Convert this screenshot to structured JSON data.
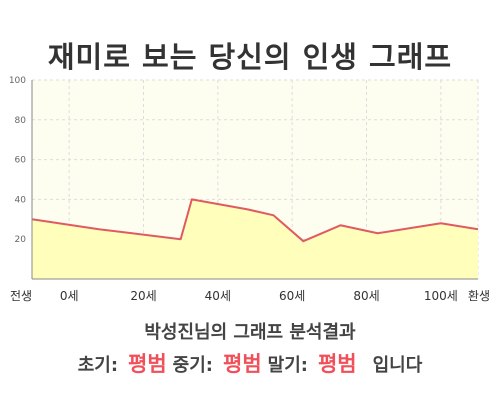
{
  "title": "재미로 보는 당신의 인생 그래프",
  "summary": "박성진님의 그래프 분석결과",
  "verdict": {
    "early_label": "초기:",
    "early_value": "평범",
    "middle_label": "중기:",
    "middle_value": "평범",
    "late_label": "말기:",
    "late_value": "평범",
    "suffix": "입니다"
  },
  "colors": {
    "line": "#e05a62",
    "fill": "#ffffbb",
    "plot_bg": "#fdfdf0",
    "grid": "#dddddd",
    "highlight": "#f0505a"
  },
  "chart_data": {
    "type": "area",
    "ylim": [
      0,
      100
    ],
    "yticks": [
      20,
      40,
      60,
      80,
      100
    ],
    "xlim": [
      -10,
      110
    ],
    "x": [
      -10,
      8,
      30,
      33,
      48,
      55,
      63,
      73,
      83,
      100,
      110
    ],
    "y": [
      30,
      25,
      20,
      40,
      35,
      32,
      19,
      27,
      23,
      28,
      25
    ],
    "xtick_positions": [
      -10,
      0,
      20,
      40,
      60,
      80,
      100,
      110
    ],
    "xtick_labels": [
      "전생",
      "0세",
      "20세",
      "40세",
      "60세",
      "80세",
      "100세",
      "환생"
    ],
    "grid": true
  }
}
